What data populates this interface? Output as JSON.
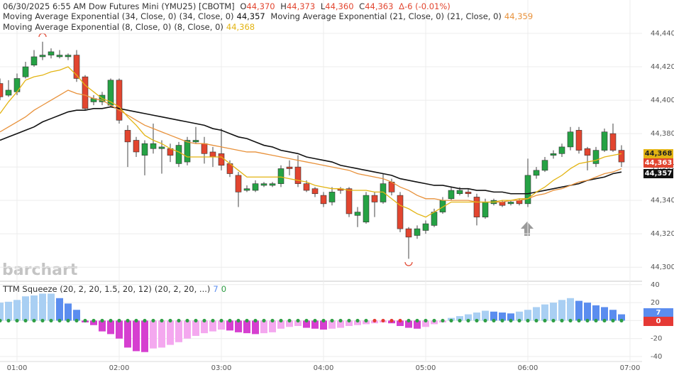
{
  "chart_data": [
    {
      "type": "candlestick",
      "title": "06/30/2025  6:55 AM Dow Futures Mini (YMU25) [CBOTM]",
      "quote": [
        {
          "label": "O",
          "value": "44,370"
        },
        {
          "label": "H",
          "value": "44,373"
        },
        {
          "label": "L",
          "value": "44,360"
        },
        {
          "label": "C",
          "value": "44,363"
        }
      ],
      "change": "Δ-6 (-0.01%)",
      "watermark": "barchart",
      "categories": [
        null,
        null,
        "01:00",
        null,
        null,
        null,
        null,
        null,
        null,
        null,
        null,
        null,
        null,
        null,
        "02:00",
        null,
        null,
        null,
        null,
        null,
        null,
        null,
        null,
        null,
        null,
        null,
        "03:00",
        null,
        null,
        null,
        null,
        null,
        null,
        null,
        null,
        null,
        null,
        null,
        "04:00",
        null,
        null,
        null,
        null,
        null,
        null,
        null,
        null,
        null,
        null,
        null,
        "05:00",
        null,
        null,
        null,
        null,
        null,
        null,
        null,
        null,
        null,
        null,
        null,
        "06:00",
        null,
        null,
        null,
        null,
        null,
        null,
        null,
        null,
        null,
        null,
        null,
        "07:00"
      ],
      "open": [
        44410,
        44403,
        44405,
        44414,
        44421,
        44426,
        44427,
        44426,
        44426,
        44427,
        44414,
        44399,
        44399,
        44397,
        44412,
        44382,
        44376,
        44367,
        44371,
        44371,
        44371,
        44362,
        44363,
        44375,
        44374,
        44369,
        44368,
        44362,
        44355,
        44346,
        44346,
        44349,
        44349,
        44350,
        44360,
        44360,
        44350,
        44347,
        44343,
        44339,
        44347,
        44347,
        44331,
        44327,
        44343,
        44339,
        44351,
        44343,
        44323,
        44319,
        44322,
        44325,
        44333,
        44341,
        44344,
        44345,
        44342,
        44330,
        44338,
        44339,
        44338,
        44340,
        44338,
        44355,
        44358,
        44367,
        44368,
        44372,
        44382,
        44371,
        44362,
        44370,
        44380,
        44370,
        null
      ],
      "high": [
        44413,
        44412,
        44416,
        44423,
        44430,
        44435,
        44431,
        44430,
        44428,
        44430,
        44415,
        44403,
        44405,
        44413,
        44413,
        44385,
        44378,
        44376,
        44386,
        44376,
        44374,
        44375,
        44378,
        44384,
        44378,
        44372,
        44383,
        44364,
        44357,
        44349,
        44352,
        44351,
        44351,
        44361,
        44364,
        44367,
        44352,
        44348,
        44345,
        44348,
        44348,
        44348,
        44336,
        44345,
        44345,
        44356,
        44353,
        44345,
        44324,
        44325,
        44328,
        44335,
        44342,
        44348,
        44348,
        44347,
        44344,
        44341,
        44341,
        44340,
        44340,
        44341,
        44365,
        44360,
        44366,
        44370,
        44374,
        44384,
        44384,
        44372,
        44372,
        44383,
        44386,
        44373,
        null
      ],
      "low": [
        44400,
        44402,
        44403,
        44413,
        44420,
        44424,
        44425,
        44425,
        44424,
        44411,
        44394,
        44397,
        44397,
        44396,
        44386,
        44360,
        44366,
        44355,
        44368,
        44356,
        44363,
        44360,
        44361,
        44374,
        44362,
        44360,
        44358,
        44354,
        44336,
        44345,
        44345,
        44348,
        44348,
        44348,
        44355,
        44348,
        44345,
        44342,
        44336,
        44337,
        44344,
        44330,
        44324,
        44326,
        44330,
        44338,
        44343,
        44321,
        44305,
        44317,
        44320,
        44324,
        44332,
        44340,
        44343,
        44342,
        44325,
        44329,
        44337,
        44336,
        44337,
        44337,
        44336,
        44353,
        44357,
        44365,
        44366,
        44370,
        44368,
        44358,
        44360,
        44369,
        44369,
        44360,
        null
      ],
      "close": [
        44402,
        44406,
        44413,
        44420,
        44426,
        44427,
        44429,
        44427,
        44427,
        44413,
        44395,
        44401,
        44403,
        44412,
        44388,
        44375,
        44369,
        44374,
        44374,
        44372,
        44367,
        44373,
        44376,
        44376,
        44368,
        44366,
        44361,
        44356,
        44345,
        44347,
        44350,
        44350,
        44350,
        44359,
        44359,
        44350,
        44346,
        44344,
        44338,
        44345,
        44346,
        44332,
        44333,
        44343,
        44339,
        44350,
        44345,
        44323,
        44318,
        44323,
        44326,
        44333,
        44340,
        44346,
        44346,
        44344,
        44330,
        44339,
        44340,
        44337,
        44339,
        44338,
        44355,
        44358,
        44364,
        44368,
        44372,
        44381,
        44370,
        44367,
        44370,
        44381,
        44370,
        44363,
        null
      ],
      "up_color": "#25a244",
      "down_color": "#e2452f",
      "series": [
        {
          "name": "Moving Average Exponential (34, Close, 0)",
          "params": "(34, Close, 0)",
          "last_label": "44,357",
          "color": "#111111",
          "values": [
            44376,
            44378,
            44380,
            44382,
            44384,
            44387,
            44389,
            44391,
            44393,
            44394,
            44394,
            44395,
            44395,
            44396,
            44395,
            44394,
            44393,
            44392,
            44391,
            44390,
            44389,
            44388,
            44387,
            44386,
            44385,
            44383,
            44382,
            44380,
            44378,
            44377,
            44375,
            44373,
            44372,
            44370,
            44369,
            44368,
            44366,
            44365,
            44364,
            44363,
            44361,
            44360,
            44359,
            44358,
            44357,
            44356,
            44355,
            44353,
            44352,
            44351,
            44350,
            44349,
            44349,
            44348,
            44347,
            44347,
            44346,
            44346,
            44345,
            44345,
            44344,
            44344,
            44344,
            44345,
            44346,
            44347,
            44348,
            44349,
            44350,
            44352,
            44353,
            44354,
            44356,
            44357,
            null
          ]
        },
        {
          "name": "Moving Average Exponential (21, Close, 0)",
          "params": "(21, Close, 0)",
          "last_label": "44,359",
          "color": "#e8913a",
          "values": [
            44381,
            44384,
            44387,
            44390,
            44394,
            44397,
            44400,
            44403,
            44406,
            44404,
            44403,
            44401,
            44400,
            44397,
            44394,
            44391,
            44388,
            44385,
            44383,
            44381,
            44379,
            44377,
            44375,
            44374,
            44374,
            44373,
            44372,
            44371,
            44370,
            44369,
            44369,
            44368,
            44367,
            44366,
            44365,
            44364,
            44363,
            44362,
            44361,
            44360,
            44359,
            44358,
            44356,
            44355,
            44354,
            44353,
            44351,
            44348,
            44346,
            44343,
            44341,
            44341,
            44340,
            44340,
            44340,
            44340,
            44339,
            44339,
            44339,
            44339,
            44340,
            44340,
            44341,
            44343,
            44344,
            44346,
            44347,
            44349,
            44351,
            44352,
            44354,
            44356,
            44357,
            44359,
            null
          ]
        },
        {
          "name": "Moving Average Exponential (8, Close, 0)",
          "params": "(8, Close, 0)",
          "last_label": "44,368",
          "color": "#e3b412",
          "values": [
            44392,
            44399,
            44405,
            44412,
            44414,
            44415,
            44417,
            44418,
            44420,
            44415,
            44409,
            44405,
            44401,
            44399,
            44396,
            44390,
            44385,
            44379,
            44376,
            44374,
            44371,
            44369,
            44366,
            44366,
            44366,
            44366,
            44366,
            44362,
            44358,
            44354,
            44354,
            44354,
            44354,
            44354,
            44353,
            44352,
            44351,
            44349,
            44348,
            44347,
            44347,
            44346,
            44346,
            44346,
            44345,
            44345,
            44341,
            44337,
            44335,
            44332,
            44330,
            44333,
            44336,
            44339,
            44339,
            44339,
            44339,
            44339,
            44339,
            44340,
            44340,
            44341,
            44341,
            44345,
            44348,
            44352,
            44355,
            44359,
            44362,
            44363,
            44364,
            44366,
            44367,
            44368,
            null
          ]
        }
      ],
      "ylim": [
        44292,
        44460
      ],
      "yticks": [
        {
          "value": 44440,
          "label": "44,440"
        },
        {
          "value": 44420,
          "label": "44,420"
        },
        {
          "value": 44400,
          "label": "44,400"
        },
        {
          "value": 44380,
          "label": "44,380"
        },
        {
          "value": 44360,
          "label": "44,360"
        },
        {
          "value": 44340,
          "label": "44,340"
        },
        {
          "value": 44320,
          "label": "44,320"
        },
        {
          "value": 44300,
          "label": "44,300"
        }
      ],
      "grid": true
    },
    {
      "type": "bar",
      "title": "TTM Squeeze (20, 2, 20, 1.5, 20, 12)",
      "subtitle": "(20, 2, 20, ...)",
      "values": [
        20,
        21,
        23,
        27,
        28,
        30,
        30,
        25,
        19,
        12,
        -2,
        -5,
        -12,
        -15,
        -20,
        -30,
        -34,
        -35,
        -31,
        -30,
        -27,
        -24,
        -20,
        -17,
        -14,
        -12,
        -10,
        -11,
        -13,
        -14,
        -15,
        -14,
        -13,
        -9,
        -7,
        -6,
        -8,
        -9,
        -10,
        -9,
        -8,
        -6,
        -5,
        -4,
        -3,
        -2,
        -3,
        -6,
        -8,
        -9,
        -7,
        -4,
        -2,
        3,
        5,
        7,
        9,
        11,
        10,
        9,
        8,
        10,
        12,
        15,
        18,
        20,
        23,
        25,
        22,
        20,
        17,
        15,
        12,
        7,
        null
      ],
      "palette": [
        "#a9cff3",
        "#5b8def",
        "#d63fd0",
        "#f4a8ef"
      ],
      "squeeze_value": 0,
      "squeeze_on": [
        false,
        false,
        false,
        false,
        false,
        false,
        false,
        false,
        false,
        false,
        false,
        false,
        false,
        false,
        false,
        false,
        false,
        false,
        false,
        false,
        false,
        false,
        false,
        false,
        false,
        false,
        false,
        false,
        false,
        false,
        false,
        false,
        false,
        false,
        false,
        false,
        false,
        false,
        false,
        false,
        false,
        false,
        false,
        false,
        true,
        true,
        true,
        true,
        false,
        false,
        false,
        false,
        false,
        false,
        false,
        false,
        false,
        false,
        false,
        false,
        false,
        false,
        false,
        false,
        false,
        false,
        false,
        false,
        false,
        false,
        false,
        false,
        false,
        false,
        null
      ],
      "dot_colors": [
        "#2e9e44",
        "#e53935"
      ],
      "ylim": [
        -45.5,
        43
      ],
      "yticks": [
        40,
        20,
        0,
        -20,
        -40
      ],
      "grid": true
    }
  ]
}
